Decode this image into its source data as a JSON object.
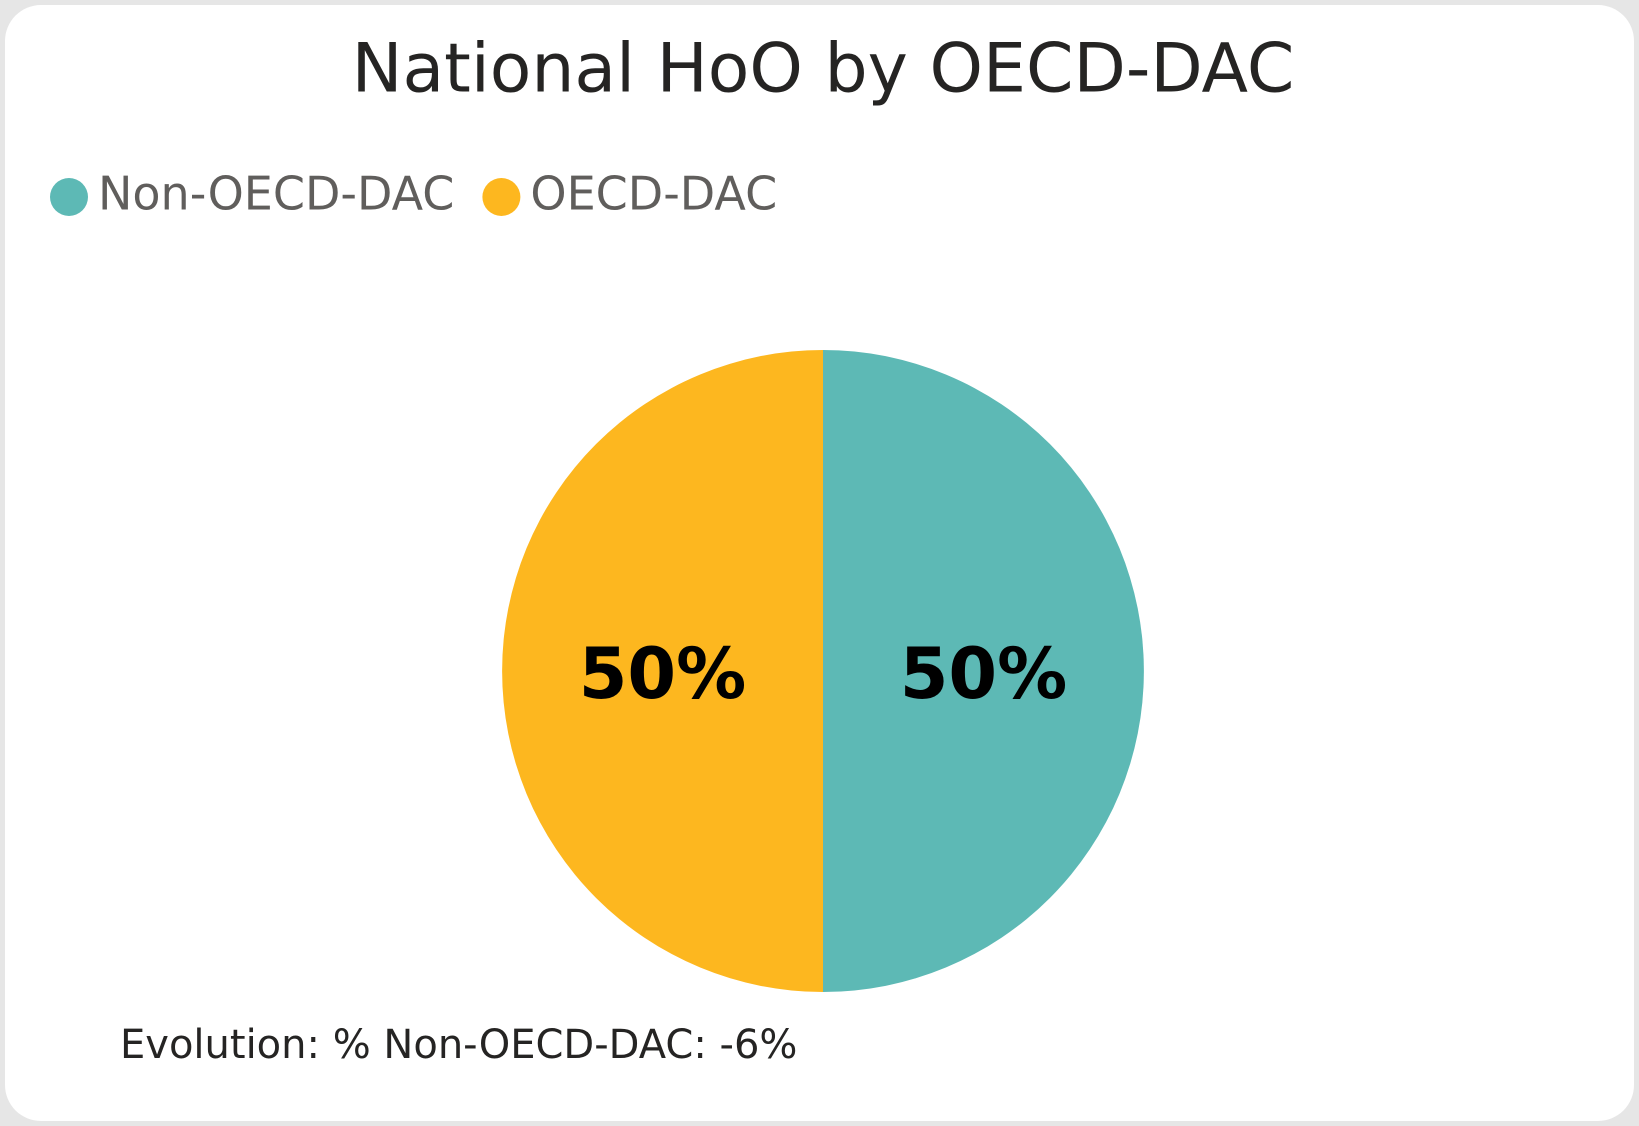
{
  "chart_data": {
    "type": "pie",
    "title": "National HoO by OECD-DAC",
    "categories": [
      "Non-OECD-DAC",
      "OECD-DAC"
    ],
    "values": [
      50,
      50
    ],
    "value_labels": [
      "50%",
      "50%"
    ],
    "colors": [
      "#5db9b5",
      "#fdb71f"
    ],
    "legend": "top-left",
    "annotation": "Evolution: % Non-OECD-DAC: -6%"
  }
}
